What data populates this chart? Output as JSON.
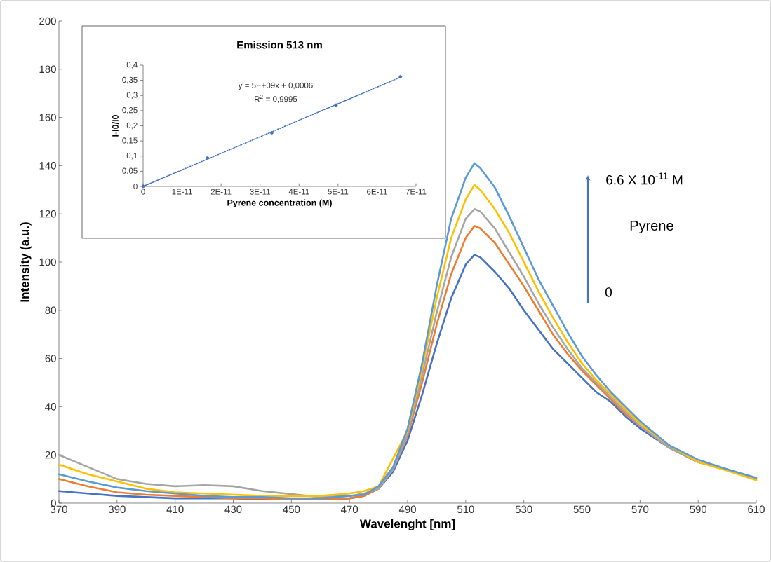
{
  "chart_data": [
    {
      "type": "line",
      "xlabel": "Wavelenght [nm]",
      "ylabel": "Intensity (a.u.)",
      "marker": "none",
      "line_style": "solid",
      "x": [
        370,
        380,
        390,
        400,
        410,
        420,
        430,
        440,
        450,
        460,
        470,
        475,
        480,
        485,
        490,
        495,
        500,
        505,
        510,
        513,
        515,
        520,
        525,
        530,
        535,
        540,
        545,
        550,
        555,
        560,
        565,
        570,
        580,
        590,
        600,
        610
      ],
      "xlim": [
        370,
        610
      ],
      "xticks": [
        370,
        390,
        410,
        430,
        450,
        470,
        490,
        510,
        530,
        550,
        570,
        590,
        610
      ],
      "ylim": [
        0,
        200
      ],
      "yticks": [
        0,
        20,
        40,
        60,
        80,
        100,
        120,
        140,
        160,
        180,
        200
      ],
      "annotations": [
        "6.6 X 10$^{-11}$ M",
        "Pyrene",
        "0"
      ],
      "series": [
        {
          "color": "#4472c4",
          "values": [
            5,
            4,
            3,
            2.5,
            2,
            2,
            2,
            1.5,
            1.5,
            1.5,
            2,
            3,
            6,
            13,
            26,
            45,
            66,
            85,
            99,
            103,
            102,
            96,
            89,
            80,
            72,
            64,
            58,
            52,
            46,
            42,
            36,
            31,
            23,
            17,
            14,
            10
          ]
        },
        {
          "color": "#ed7d31",
          "values": [
            10,
            7,
            4.5,
            3.5,
            3,
            2.5,
            2,
            2,
            1.5,
            1.5,
            2,
            3,
            6,
            14,
            28,
            50,
            74,
            95,
            110,
            115,
            114,
            108,
            99,
            90,
            80,
            70,
            62,
            55,
            49,
            43,
            37,
            32,
            23,
            17,
            14,
            10
          ]
        },
        {
          "color": "#a5a5a5",
          "values": [
            20,
            15,
            10,
            8,
            7,
            7.5,
            7,
            5,
            null,
            2.5,
            3,
            4,
            6,
            14,
            29,
            53,
            79,
            102,
            118,
            122,
            121,
            114,
            104,
            94,
            83,
            73,
            64,
            56,
            50,
            44,
            38,
            32,
            23,
            17,
            14,
            10
          ]
        },
        {
          "color": "#ffc000",
          "values": [
            16,
            12,
            9,
            6,
            4.5,
            4,
            3.5,
            3,
            3,
            3,
            4,
            5,
            7,
            null,
            30,
            56,
            85,
            110,
            126,
            132,
            130,
            122,
            112,
            100,
            88,
            77,
            67,
            58,
            51,
            45,
            39,
            33,
            24,
            17,
            13.5,
            9.5
          ]
        },
        {
          "color": "#5b9bd5",
          "values": [
            12,
            9,
            6.5,
            5,
            4,
            3,
            2.5,
            2.5,
            2,
            2,
            3,
            3.5,
            7,
            15,
            31,
            58,
            90,
            118,
            135,
            141,
            139,
            131,
            119,
            106,
            93,
            82,
            71,
            61,
            53,
            46,
            40,
            34,
            24,
            18,
            14,
            10.5
          ]
        }
      ]
    },
    {
      "type": "scatter",
      "title": "Emission 513 nm",
      "xlabel": "Pyrene concentration (M)",
      "ylabel": "I-I0/I0",
      "marker": "circle",
      "xlim": [
        0,
        7e-11
      ],
      "xticks": [
        0,
        {
          "value": 1e-11,
          "label": "1E-11"
        },
        {
          "value": 2e-11,
          "label": "2E-11"
        },
        {
          "value": 3e-11,
          "label": "3E-11"
        },
        {
          "value": 4e-11,
          "label": "4E-11"
        },
        {
          "value": 5e-11,
          "label": "5E-11"
        },
        {
          "value": 6e-11,
          "label": "6E-11"
        },
        {
          "value": 7e-11,
          "label": "7E-11"
        }
      ],
      "ylim": [
        0,
        0.4
      ],
      "yticks": [
        0,
        {
          "value": 0.05,
          "label": "0,05"
        },
        {
          "value": 0.1,
          "label": "0,1"
        },
        {
          "value": 0.15,
          "label": "0,15"
        },
        {
          "value": 0.2,
          "label": "0,2"
        },
        {
          "value": 0.25,
          "label": "0,25"
        },
        {
          "value": 0.3,
          "label": "0,3"
        },
        {
          "value": 0.35,
          "label": "0,35"
        },
        {
          "value": 0.4,
          "label": "0,4"
        }
      ],
      "annotations": [
        "y = 5E+09x + 0,0006",
        "R$^{2}$ = 0,9995"
      ],
      "series": [
        {
          "color": "#4472c4",
          "x": [
            0,
            1.65e-11,
            3.3e-11,
            4.95e-11,
            6.6e-11
          ],
          "values": [
            0,
            0.094,
            0.177,
            0.268,
            0.362
          ]
        },
        {
          "type": "line",
          "line_style": "dotted",
          "marker": "none",
          "color": "#4472c4",
          "x": [
            0,
            6.6e-11
          ],
          "values": [
            0,
            0.36
          ]
        }
      ]
    }
  ]
}
